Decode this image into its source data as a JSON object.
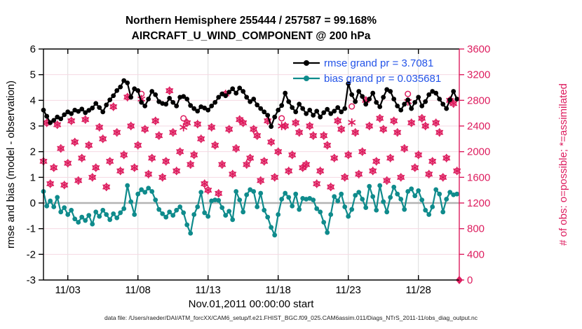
{
  "title": {
    "line1": "Northern Hemisphere 255444 / 257587 = 99.168%",
    "line2": "AIRCRAFT_U_WIND_COMPONENT @ 200 hPa"
  },
  "footer": "data file: /Users/raeder/DAI/ATM_forcXX/CAM6_setup/f.e21.FHIST_BGC.f09_025.CAM6assim.011/Diags_NTrS_2011-11/obs_diag_output.nc",
  "legend": {
    "text_color": "#2353e8",
    "items": [
      {
        "label": "rmse grand pr = 3.7081",
        "color": "#000000"
      },
      {
        "label": "bias grand pr = 0.035681",
        "color": "#0f8b8c"
      }
    ]
  },
  "colors": {
    "rmse": "#000000",
    "bias": "#0f8b8c",
    "obs": "#dd1c5e",
    "grid_h": "#f5d8e3",
    "grid_v": "#dcdcdc",
    "zero_line": "#b3b3b3",
    "spine": "#000000"
  },
  "chart_data": {
    "type": "line",
    "title": "Northern Hemisphere 255444 / 257587 = 99.168% | AIRCRAFT_U_WIND_COMPONENT @ 200 hPa",
    "xlabel": "Nov.01,2011 00:00:00 start",
    "ylabel_left": "rmse and bias (model - observation)",
    "ylabel_right": "# of obs: o=possible; *=assimilated",
    "ylim_left": [
      -3,
      6
    ],
    "ylim_right": [
      0,
      3600
    ],
    "yticks_left": [
      6,
      5,
      4,
      3,
      2,
      1,
      0,
      -1,
      -2,
      -3
    ],
    "yticks_right": [
      3600,
      3200,
      2800,
      2400,
      2000,
      1600,
      1200,
      800,
      400,
      0
    ],
    "xlim_days": [
      0.265,
      29.92
    ],
    "xticks": [
      {
        "day": 2,
        "label": "11/03"
      },
      {
        "day": 7,
        "label": "11/08"
      },
      {
        "day": 12,
        "label": "11/13"
      },
      {
        "day": 17,
        "label": "11/18"
      },
      {
        "day": 22,
        "label": "11/23"
      },
      {
        "day": 27,
        "label": "11/28"
      }
    ],
    "grid": true,
    "legend_position": "top-right-inside",
    "x_unit": "days since Nov.01,2011 00:00:00",
    "x": [
      0.25,
      0.5,
      0.75,
      1,
      1.25,
      1.5,
      1.75,
      2,
      2.25,
      2.5,
      2.75,
      3,
      3.25,
      3.5,
      3.75,
      4,
      4.25,
      4.5,
      4.75,
      5,
      5.25,
      5.5,
      5.75,
      6,
      6.25,
      6.5,
      6.75,
      7,
      7.25,
      7.5,
      7.75,
      8,
      8.25,
      8.5,
      8.75,
      9,
      9.25,
      9.5,
      9.75,
      10,
      10.25,
      10.5,
      10.75,
      11,
      11.25,
      11.5,
      11.75,
      12,
      12.25,
      12.5,
      12.75,
      13,
      13.25,
      13.5,
      13.75,
      14,
      14.25,
      14.5,
      14.75,
      15,
      15.25,
      15.5,
      15.75,
      16,
      16.25,
      16.5,
      16.75,
      17,
      17.25,
      17.5,
      17.75,
      18,
      18.25,
      18.5,
      18.75,
      19,
      19.25,
      19.5,
      19.75,
      20,
      20.25,
      20.5,
      20.75,
      21,
      21.25,
      21.5,
      21.75,
      22,
      22.25,
      22.5,
      22.75,
      23,
      23.25,
      23.5,
      23.75,
      24,
      24.25,
      24.5,
      24.75,
      25,
      25.25,
      25.5,
      25.75,
      26,
      26.25,
      26.5,
      26.75,
      27,
      27.25,
      27.5,
      27.75,
      28,
      28.25,
      28.5,
      28.75,
      29,
      29.25,
      29.5,
      29.75,
      30
    ],
    "series": [
      {
        "name": "rmse",
        "axis": "left",
        "color": "#000000",
        "grand_value": 3.7081,
        "values": [
          3.62,
          3.38,
          3.13,
          3.22,
          3.35,
          3.28,
          3.44,
          3.55,
          3.48,
          3.62,
          3.57,
          3.66,
          3.52,
          3.61,
          3.7,
          3.88,
          3.72,
          3.55,
          3.82,
          4.02,
          4.18,
          4.38,
          4.52,
          4.77,
          4.68,
          4.12,
          4.45,
          4.38,
          3.92,
          3.78,
          4.05,
          4.35,
          4.22,
          3.95,
          3.88,
          3.85,
          4.08,
          3.92,
          3.78,
          4.12,
          4.15,
          4.05,
          3.8,
          3.68,
          3.58,
          3.75,
          3.7,
          3.62,
          3.78,
          3.92,
          4.12,
          4.25,
          4.18,
          4.32,
          4.45,
          4.28,
          4.48,
          4.35,
          4.12,
          3.95,
          4.05,
          3.82,
          3.68,
          3.55,
          3.42,
          2.98,
          3.35,
          3.62,
          3.8,
          4.28,
          3.95,
          3.72,
          3.55,
          3.85,
          3.68,
          3.48,
          3.62,
          3.42,
          3.58,
          3.35,
          3.52,
          3.65,
          3.48,
          3.58,
          3.72,
          3.55,
          3.68,
          4.65,
          4.22,
          3.95,
          4.35,
          4.15,
          3.85,
          4.05,
          4.28,
          3.92,
          3.75,
          4.12,
          4.42,
          4.35,
          4.05,
          3.78,
          3.62,
          3.85,
          4.02,
          3.68,
          3.92,
          4.12,
          3.78,
          3.95,
          4.22,
          4.35,
          4.28,
          4.05,
          3.85,
          3.68,
          4.02,
          4.35,
          4.05,
          null
        ]
      },
      {
        "name": "bias",
        "axis": "left",
        "color": "#0f8b8c",
        "grand_value": 0.035681,
        "values": [
          0.45,
          -0.12,
          0.08,
          -0.15,
          0.22,
          -0.35,
          -0.18,
          -0.45,
          -0.28,
          -0.62,
          -0.75,
          -0.55,
          -0.68,
          -0.48,
          -0.82,
          -0.35,
          -0.52,
          -0.28,
          -0.45,
          -0.65,
          -0.42,
          -0.58,
          -0.38,
          -0.22,
          0.68,
          0.05,
          -0.45,
          0.35,
          0.52,
          0.42,
          0.58,
          0.45,
          0.12,
          -0.25,
          -0.42,
          -0.55,
          -0.35,
          -0.48,
          -0.28,
          -0.15,
          -0.38,
          -0.85,
          -1.18,
          -0.45,
          -0.15,
          0.42,
          -0.38,
          -0.52,
          0.08,
          0.12,
          0.1,
          -0.18,
          -0.48,
          -0.32,
          -0.65,
          0.45,
          0.12,
          -0.35,
          0.32,
          0.52,
          0.45,
          -0.15,
          0.38,
          -0.28,
          -0.55,
          -0.95,
          -1.25,
          -0.45,
          0.15,
          0.38,
          0.22,
          -0.12,
          0.35,
          -0.25,
          0.18,
          0.15,
          0.18,
          0.12,
          -0.22,
          -0.35,
          -0.75,
          -1.15,
          -0.45,
          0.25,
          0.08,
          0.35,
          -0.15,
          -0.52,
          -0.25,
          0.3,
          0.42,
          0.15,
          -0.18,
          0.65,
          0.25,
          -0.28,
          0.68,
          0.05,
          -0.35,
          0.22,
          0.62,
          0.35,
          0.15,
          -0.25,
          0.45,
          0.55,
          0.28,
          0.48,
          0.12,
          -0.28,
          -0.45,
          -0.15,
          0.52,
          0.35,
          -0.35,
          0.15,
          0.42,
          0.32,
          0.35,
          null
        ]
      },
      {
        "name": "possible_obs",
        "axis": "right",
        "marker": "o",
        "color": "#dd1c5e",
        "values": [
          1850,
          2450,
          1500,
          1750,
          2420,
          2050,
          1480,
          1820,
          2480,
          2150,
          1550,
          1900,
          2500,
          2100,
          1600,
          1750,
          2380,
          2200,
          1450,
          1850,
          2700,
          2300,
          1700,
          1950,
          2850,
          2400,
          1750,
          2100,
          2900,
          2350,
          1650,
          1900,
          2480,
          2250,
          1600,
          1850,
          2950,
          2300,
          1700,
          2000,
          2520,
          2450,
          1800,
          1950,
          2430,
          2200,
          1500,
          1400,
          2380,
          2100,
          1350,
          1800,
          2900,
          2350,
          1650,
          2050,
          2500,
          2450,
          1800,
          1900,
          2350,
          2250,
          1550,
          1850,
          2480,
          2150,
          1600,
          2000,
          2520,
          2400,
          1700,
          1950,
          2450,
          2300,
          1750,
          1800,
          2400,
          2250,
          1500,
          1700,
          2250,
          2100,
          1450,
          1900,
          2480,
          2350,
          1600,
          1950,
          2705,
          2300,
          1650,
          2000,
          2800,
          2400,
          1700,
          1850,
          2520,
          2350,
          1550,
          1900,
          2480,
          2300,
          1600,
          2050,
          2900,
          2450,
          1750,
          1950,
          2520,
          2400,
          1650,
          1850,
          2450,
          2300,
          1600,
          1900,
          2800,
          2750,
          1700,
          0
        ]
      },
      {
        "name": "assimilated_obs",
        "axis": "right",
        "marker": "*",
        "color": "#dd1c5e",
        "values": [
          1850,
          2450,
          1500,
          1750,
          2420,
          2050,
          1480,
          1820,
          2480,
          2150,
          1550,
          1900,
          2500,
          2100,
          1600,
          1750,
          2380,
          2200,
          1450,
          1850,
          2700,
          2300,
          1700,
          1950,
          2850,
          2400,
          1750,
          2100,
          2820,
          2350,
          1650,
          1900,
          2480,
          2250,
          1600,
          1850,
          2950,
          2300,
          1700,
          2000,
          2380,
          2450,
          1800,
          1950,
          2430,
          2200,
          1500,
          1400,
          2380,
          2100,
          1350,
          1800,
          2900,
          2350,
          1650,
          2050,
          2500,
          2450,
          1800,
          1900,
          2350,
          2250,
          1550,
          1850,
          2480,
          2150,
          1600,
          2000,
          2400,
          2400,
          1700,
          1950,
          2450,
          2300,
          1750,
          1800,
          2400,
          2250,
          1500,
          1700,
          2250,
          2100,
          1450,
          1900,
          2480,
          2350,
          1600,
          1950,
          2455,
          2300,
          1650,
          2000,
          2800,
          2400,
          1700,
          1850,
          2520,
          2350,
          1550,
          1900,
          2480,
          2300,
          1600,
          2050,
          2780,
          2450,
          1750,
          1950,
          2520,
          2400,
          1650,
          1850,
          2450,
          2300,
          1600,
          1900,
          2800,
          2750,
          1700,
          0
        ]
      }
    ]
  }
}
